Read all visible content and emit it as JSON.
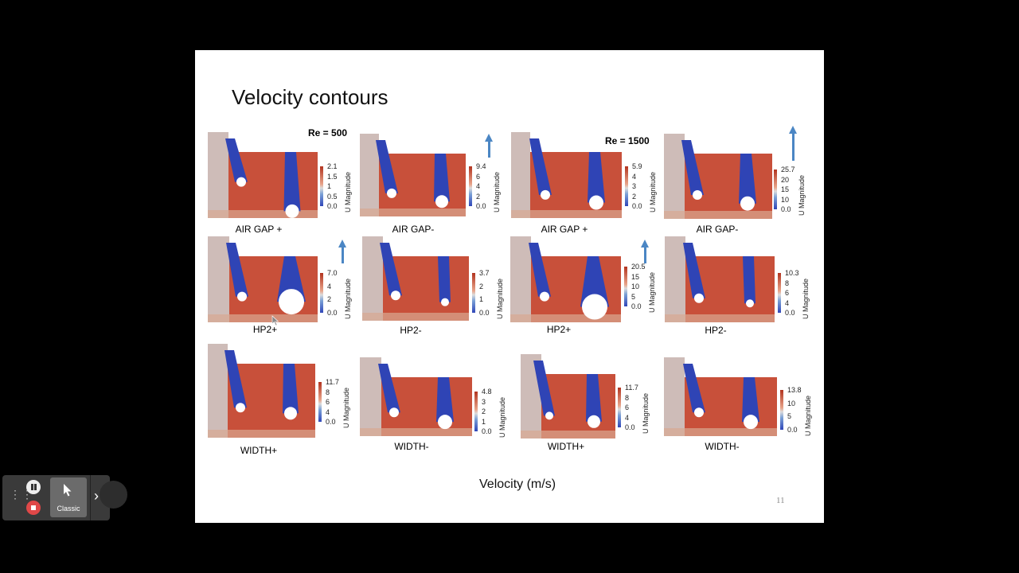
{
  "slide": {
    "title": "Velocity contours",
    "re_left": "Re = 500",
    "re_right": "Re = 1500",
    "footer": "Velocity (m/s)",
    "page_number": "11"
  },
  "legend_label": "U Magnitude",
  "panels": [
    {
      "caption": "AIR GAP +",
      "ticks": [
        "2.1",
        "1.5",
        "1",
        "0.5",
        "0.0"
      ],
      "arrow": false
    },
    {
      "caption": "AIR GAP-",
      "ticks": [
        "9.4",
        "6",
        "4",
        "2",
        "0.0"
      ],
      "arrow": true
    },
    {
      "caption": "AIR GAP +",
      "ticks": [
        "5.9",
        "4",
        "3",
        "2",
        "0.0"
      ],
      "arrow": false
    },
    {
      "caption": "AIR GAP-",
      "ticks": [
        "25.7",
        "20",
        "15",
        "10",
        "0.0"
      ],
      "arrow": true
    },
    {
      "caption": "HP2+",
      "ticks": [
        "7.0",
        "4",
        "2",
        "0.0"
      ],
      "arrow": true
    },
    {
      "caption": "HP2-",
      "ticks": [
        "3.7",
        "2",
        "1",
        "0.0"
      ],
      "arrow": false
    },
    {
      "caption": "HP2+",
      "ticks": [
        "20.5",
        "15",
        "10",
        "5",
        "0.0"
      ],
      "arrow": true
    },
    {
      "caption": "HP2-",
      "ticks": [
        "10.3",
        "8",
        "6",
        "4",
        "0.0"
      ],
      "arrow": false
    },
    {
      "caption": "WIDTH+",
      "ticks": [
        "11.7",
        "8",
        "6",
        "4",
        "0.0"
      ],
      "arrow": false
    },
    {
      "caption": "WIDTH-",
      "ticks": [
        "4.8",
        "3",
        "2",
        "1",
        "0.0"
      ],
      "arrow": false
    },
    {
      "caption": "WIDTH+",
      "ticks": [
        "11.7",
        "8",
        "6",
        "4",
        "0.0"
      ],
      "arrow": false
    },
    {
      "caption": "WIDTH-",
      "ticks": [
        "13.8",
        "10",
        "5",
        "0.0"
      ],
      "arrow": false
    }
  ],
  "toolbar": {
    "mode_label": "Classic",
    "pause_icon": "pause-icon",
    "stop_icon": "stop-icon",
    "chevron_icon": "chevron-right-icon"
  },
  "colors": {
    "hot": "#c8503a",
    "cold": "#2f44b5",
    "arrow": "#4b86c4",
    "neutral": "#cfcfcf"
  }
}
